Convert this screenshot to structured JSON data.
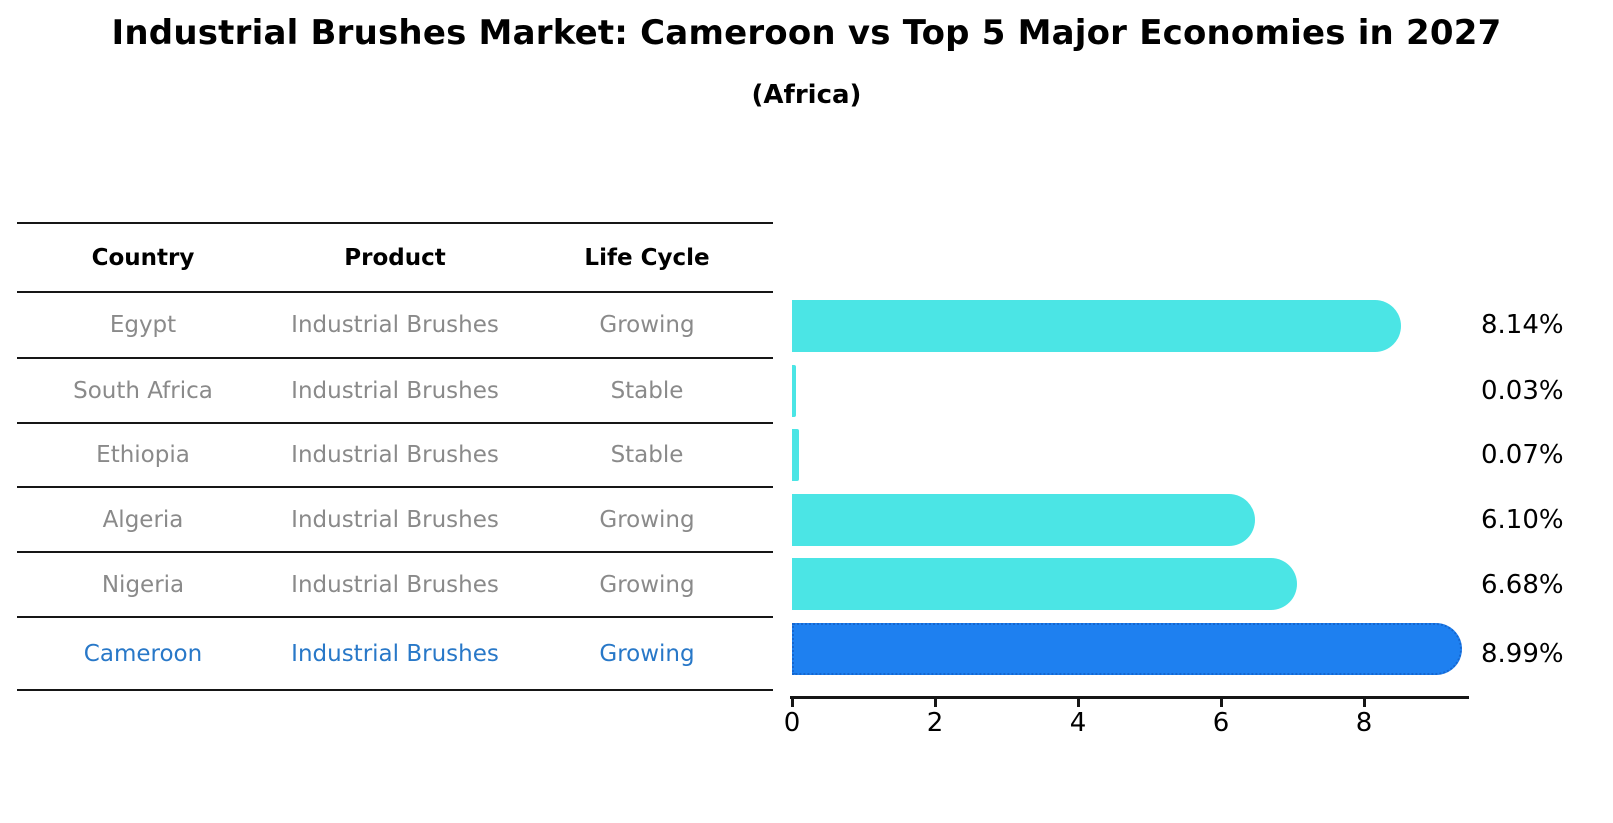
{
  "title": "Industrial Brushes Market: Cameroon vs Top 5 Major Economies in 2027",
  "subtitle": "(Africa)",
  "table": {
    "columns": [
      "Country",
      "Product",
      "Life Cycle"
    ],
    "rows": [
      {
        "country": "Egypt",
        "product": "Industrial Brushes",
        "life_cycle": "Growing",
        "highlight": false
      },
      {
        "country": "South Africa",
        "product": "Industrial Brushes",
        "life_cycle": "Stable",
        "highlight": false
      },
      {
        "country": "Ethiopia",
        "product": "Industrial Brushes",
        "life_cycle": "Stable",
        "highlight": false
      },
      {
        "country": "Algeria",
        "product": "Industrial Brushes",
        "life_cycle": "Growing",
        "highlight": false
      },
      {
        "country": "Nigeria",
        "product": "Industrial Brushes",
        "life_cycle": "Growing",
        "highlight": false
      },
      {
        "country": "Cameroon",
        "product": "Industrial Brushes",
        "life_cycle": "Growing",
        "highlight": true
      }
    ]
  },
  "chart_data": {
    "type": "bar",
    "orientation": "horizontal",
    "title": "Industrial Brushes Market: Cameroon vs Top 5 Major Economies in 2027",
    "subtitle": "(Africa)",
    "categories": [
      "Egypt",
      "South Africa",
      "Ethiopia",
      "Algeria",
      "Nigeria",
      "Cameroon"
    ],
    "values": [
      8.14,
      0.03,
      0.07,
      6.1,
      6.68,
      8.99
    ],
    "value_labels": [
      "8.14%",
      "0.03%",
      "0.07%",
      "6.10%",
      "6.68%",
      "8.99%"
    ],
    "highlight_category": "Cameroon",
    "x_ticks": [
      0,
      2,
      4,
      6,
      8
    ],
    "xlim": [
      0,
      9.45
    ],
    "grid": false,
    "legend": false
  },
  "colors": {
    "bar": "#4BE5E5",
    "highlight_bar": "#1E80F0",
    "highlight_bar_border": "#1566CF",
    "row_text": "#8A8A8A",
    "highlight_text": "#2878C8",
    "axis": "#161616",
    "heading_text": "#000000"
  }
}
